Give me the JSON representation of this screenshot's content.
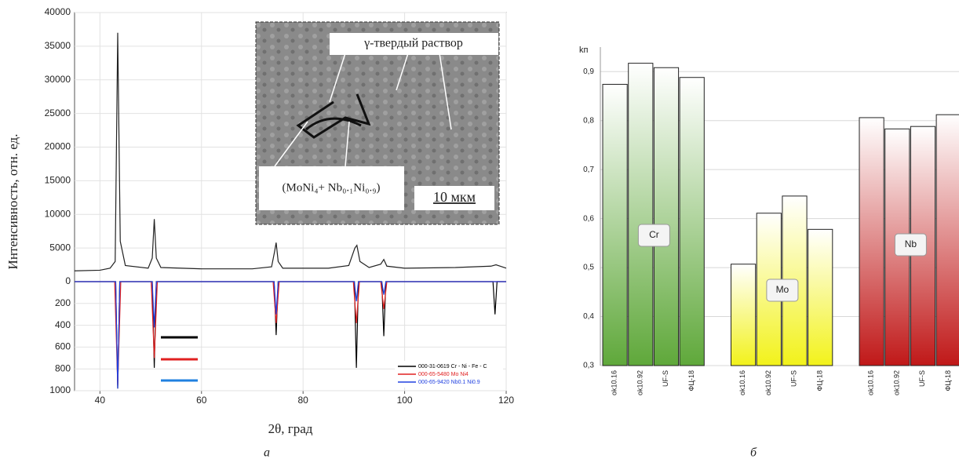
{
  "chart_data": [
    {
      "type": "line",
      "x_label": "2θ, град",
      "y_label": "Интенсивность, отн. ед.",
      "caption": "а",
      "annotations": [
        "γ-твердый раствор",
        "(MoNi₄+ Nb₀.₁Ni₀.₉)",
        "10 мкм"
      ],
      "xlim": [
        35,
        120
      ],
      "xticks": [
        40,
        60,
        80,
        100,
        120
      ],
      "ylim": [
        0,
        40000
      ],
      "yticks": [
        0,
        5000,
        10000,
        15000,
        20000,
        25000,
        30000,
        35000,
        40000
      ],
      "grid": true,
      "series": [
        {
          "color": "#222222",
          "x": [
            35,
            40,
            42,
            43,
            43.5,
            44,
            45,
            49.5,
            50.3,
            50.7,
            51.1,
            52,
            60,
            70,
            73.8,
            74.4,
            74.7,
            75.1,
            76,
            85,
            89,
            90.2,
            90.6,
            91.2,
            93,
            95.3,
            95.9,
            96.5,
            100,
            110,
            117,
            118,
            120
          ],
          "values": [
            1600,
            1700,
            2000,
            3000,
            37000,
            6000,
            2400,
            2000,
            3500,
            9300,
            3500,
            2100,
            1900,
            1900,
            2200,
            4500,
            5800,
            3000,
            2000,
            2000,
            2400,
            5000,
            5400,
            3000,
            2100,
            2600,
            3300,
            2300,
            2000,
            2100,
            2300,
            2500,
            2000
          ]
        }
      ],
      "lower": {
        "ylim": [
          0,
          1000
        ],
        "yticks": [
          200,
          400,
          600,
          800,
          1000
        ],
        "series": [
          {
            "name": "000-31-0619 Cr - Ni - Fe - C",
            "color": "#000000",
            "x": [
              35,
              43.1,
              43.5,
              43.9,
              50.3,
              50.7,
              51.1,
              74.3,
              74.7,
              75.1,
              90.1,
              90.5,
              90.9,
              95.5,
              95.9,
              96.3,
              117.4,
              117.8,
              118.2,
              120
            ],
            "values": [
              0,
              0,
              980,
              0,
              0,
              790,
              0,
              0,
              490,
              0,
              0,
              790,
              0,
              0,
              500,
              0,
              0,
              300,
              0,
              0
            ]
          },
          {
            "name": "000-65-5480 Mo Ni4",
            "color": "#e02020",
            "x": [
              35,
              42.9,
              43.5,
              44.1,
              50.1,
              50.7,
              51.3,
              74.1,
              74.7,
              75.3,
              89.9,
              90.5,
              91.1,
              95.3,
              95.9,
              96.5,
              120
            ],
            "values": [
              0,
              0,
              950,
              0,
              0,
              700,
              0,
              0,
              380,
              0,
              0,
              380,
              0,
              0,
              250,
              0,
              0
            ]
          },
          {
            "name": "000-65-9420 Nb0.1 Ni0.9",
            "color": "#2040e0",
            "x": [
              35,
              43.1,
              43.5,
              43.9,
              50.3,
              50.7,
              51.1,
              74.3,
              74.7,
              75.1,
              90.1,
              90.5,
              90.9,
              95.5,
              95.9,
              96.3,
              120
            ],
            "values": [
              0,
              0,
              980,
              0,
              0,
              420,
              0,
              0,
              300,
              0,
              0,
              180,
              0,
              0,
              120,
              0,
              0
            ]
          }
        ]
      }
    },
    {
      "type": "bar",
      "y_label": "kп",
      "caption": "б",
      "categories": [
        "ok10.16",
        "ok10.92",
        "UF-S",
        "ФЦ-18"
      ],
      "ylim": [
        0.3,
        0.95
      ],
      "yticks": [
        {
          "value": 0.3,
          "label": "0,3"
        },
        {
          "value": 0.4,
          "label": "0,4"
        },
        {
          "value": 0.5,
          "label": "0,5"
        },
        {
          "value": 0.6,
          "label": "0,6"
        },
        {
          "value": 0.7,
          "label": "0,7"
        },
        {
          "value": 0.8,
          "label": "0,8"
        },
        {
          "value": 0.9,
          "label": "0,9"
        }
      ],
      "grid": true,
      "series": [
        {
          "name": "Cr",
          "color": "#5fa83a",
          "values": [
            0.874,
            0.917,
            0.908,
            0.888
          ]
        },
        {
          "name": "Mo",
          "color": "#f2f21a",
          "values": [
            0.507,
            0.611,
            0.646,
            0.578
          ]
        },
        {
          "name": "Nb",
          "color": "#c01818",
          "values": [
            0.806,
            0.783,
            0.788,
            0.812
          ]
        }
      ]
    }
  ]
}
